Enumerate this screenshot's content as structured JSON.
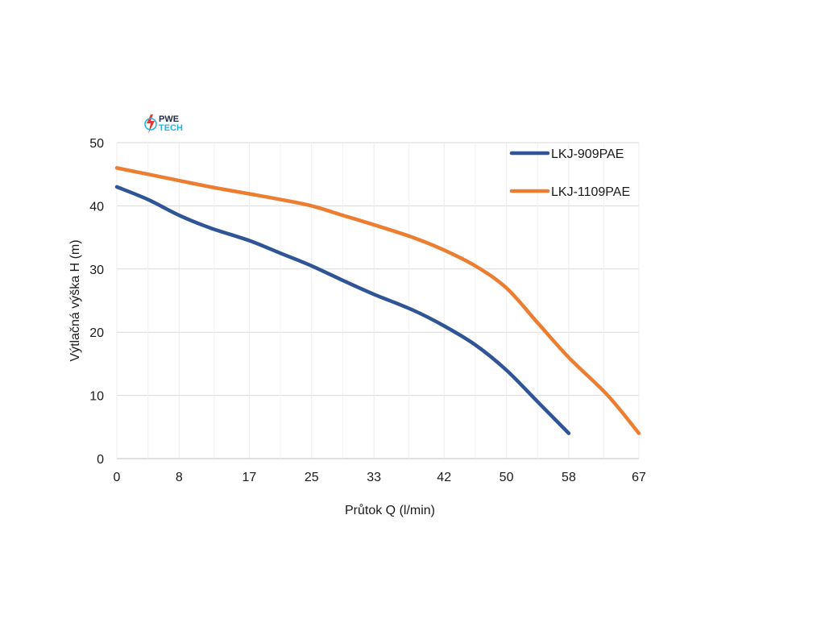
{
  "logo": {
    "line1": "PWE",
    "line2": "TECH",
    "colors": {
      "dark": "#1f2a44",
      "cyan": "#1fb6e0",
      "red": "#e53935"
    }
  },
  "chart_data": {
    "type": "line",
    "title": "",
    "xlabel": "Průtok Q (l/min)",
    "ylabel": "Výtlačná výška H (m)",
    "xlim": [
      0,
      67
    ],
    "ylim": [
      0,
      50
    ],
    "x_ticks": [
      0,
      8,
      17,
      25,
      33,
      42,
      50,
      58,
      67
    ],
    "y_ticks": [
      0,
      10,
      20,
      30,
      40,
      50
    ],
    "grid": true,
    "legend_position": "top-right",
    "series": [
      {
        "name": "LKJ-909PAE",
        "color": "#2f5597",
        "x": [
          0,
          4,
          8,
          12,
          17,
          21,
          25,
          29,
          33,
          38,
          42,
          46,
          50,
          54,
          58
        ],
        "y": [
          43,
          41,
          38.5,
          36.5,
          34.5,
          32.5,
          30.5,
          28.2,
          26,
          23.5,
          21,
          18,
          14,
          9,
          4
        ]
      },
      {
        "name": "LKJ-1109PAE",
        "color": "#ed7d31",
        "x": [
          0,
          4,
          8,
          12,
          17,
          21,
          25,
          29,
          33,
          38,
          42,
          46,
          50,
          54,
          58,
          63,
          67
        ],
        "y": [
          46,
          45,
          44,
          43,
          41.9,
          41,
          40,
          38.5,
          37,
          35,
          33,
          30.5,
          27,
          21.5,
          16,
          10,
          4
        ]
      }
    ]
  }
}
